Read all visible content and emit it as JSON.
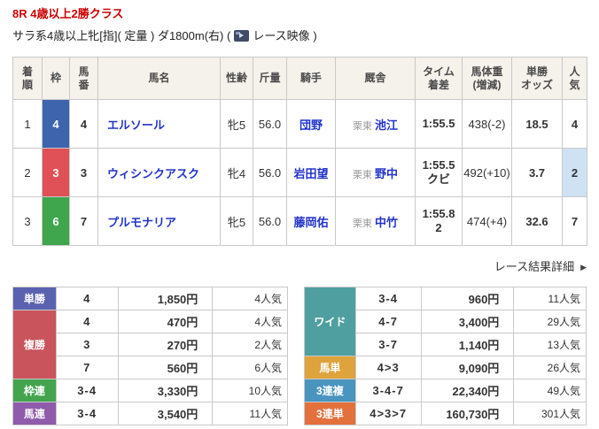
{
  "colors": {
    "title_red": "#cc0000",
    "link_blue": "#2233cc",
    "border": "#c9c9c9",
    "header_bg": "#f5f1eb",
    "popularity_highlight": "#cfe2f4",
    "frame_blue": "#3d64ad",
    "frame_red": "#df5156",
    "frame_green": "#3fa64d"
  },
  "header": {
    "race_title": "8R 4歳以上2勝クラス",
    "conditions": "サラ系4歳以上牝[指]( 定量 ) ダ1800m(右)",
    "video_open": "(",
    "video_label": "レース映像",
    "video_close": ")",
    "video_icon": "play-video-icon"
  },
  "results": {
    "columns": [
      "着\n順",
      "枠",
      "馬\n番",
      "馬名",
      "性齢",
      "斤量",
      "騎手",
      "厩舎",
      "タイム\n着差",
      "馬体重\n(増減)",
      "単勝\nオッズ",
      "人\n気"
    ],
    "rows": [
      {
        "rank": "1",
        "frame": "4",
        "frame_color": "#3d64ad",
        "horse_no": "4",
        "name": "エルソール",
        "sex_age": "牝5",
        "weight": "56.0",
        "jockey": "団野",
        "area": "栗東",
        "trainer": "池江",
        "time": "1:55.5",
        "margin": "",
        "body_weight": "438(-2)",
        "odds": "18.5",
        "popularity": "4",
        "popularity_highlight": false
      },
      {
        "rank": "2",
        "frame": "3",
        "frame_color": "#df5156",
        "horse_no": "3",
        "name": "ウィシンクアスク",
        "sex_age": "牝4",
        "weight": "56.0",
        "jockey": "岩田望",
        "area": "栗東",
        "trainer": "野中",
        "time": "1:55.5",
        "margin": "クビ",
        "body_weight": "492(+10)",
        "odds": "3.7",
        "popularity": "2",
        "popularity_highlight": true
      },
      {
        "rank": "3",
        "frame": "6",
        "frame_color": "#3fa64d",
        "horse_no": "7",
        "name": "プルモナリア",
        "sex_age": "牝5",
        "weight": "56.0",
        "jockey": "藤岡佑",
        "area": "栗東",
        "trainer": "中竹",
        "time": "1:55.8",
        "margin": "2",
        "body_weight": "474(+4)",
        "odds": "32.6",
        "popularity": "7",
        "popularity_highlight": false
      }
    ]
  },
  "detail_link": {
    "label": "レース結果詳細",
    "arrow": "▶"
  },
  "payouts": {
    "left": [
      {
        "label": "単勝",
        "color": "#5a62b0",
        "entries": [
          {
            "combo": "4",
            "amount": "1,850円",
            "pop": "4人気"
          }
        ]
      },
      {
        "label": "複勝",
        "color": "#c9545c",
        "entries": [
          {
            "combo": "4",
            "amount": "470円",
            "pop": "4人気"
          },
          {
            "combo": "3",
            "amount": "270円",
            "pop": "2人気"
          },
          {
            "combo": "7",
            "amount": "560円",
            "pop": "6人気"
          }
        ]
      },
      {
        "label": "枠連",
        "color": "#44a44e",
        "entries": [
          {
            "combo": "3-4",
            "amount": "3,330円",
            "pop": "10人気"
          }
        ]
      },
      {
        "label": "馬連",
        "color": "#8f5bab",
        "entries": [
          {
            "combo": "3-4",
            "amount": "3,540円",
            "pop": "11人気"
          }
        ]
      }
    ],
    "right": [
      {
        "label": "ワイド",
        "color": "#4f9fa0",
        "entries": [
          {
            "combo": "3-4",
            "amount": "960円",
            "pop": "11人気"
          },
          {
            "combo": "4-7",
            "amount": "3,400円",
            "pop": "29人気"
          },
          {
            "combo": "3-7",
            "amount": "1,140円",
            "pop": "13人気"
          }
        ]
      },
      {
        "label": "馬単",
        "color": "#dea33c",
        "entries": [
          {
            "combo": "4>3",
            "amount": "9,090円",
            "pop": "26人気"
          }
        ]
      },
      {
        "label": "3連複",
        "color": "#4a95c0",
        "entries": [
          {
            "combo": "3-4-7",
            "amount": "22,340円",
            "pop": "49人気"
          }
        ]
      },
      {
        "label": "3連単",
        "color": "#e2713c",
        "entries": [
          {
            "combo": "4>3>7",
            "amount": "160,730円",
            "pop": "301人気"
          }
        ]
      }
    ]
  }
}
